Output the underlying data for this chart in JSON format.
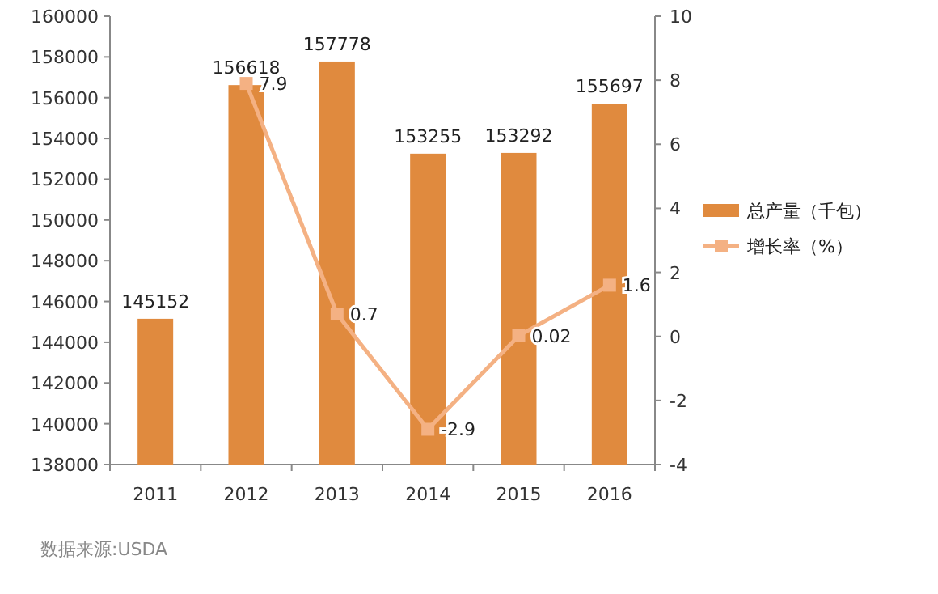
{
  "chart_data": {
    "type": "bar",
    "categories": [
      "2011",
      "2012",
      "2013",
      "2014",
      "2015",
      "2016"
    ],
    "series": [
      {
        "name": "总产量（千包）",
        "color": "#e08a3e",
        "values": [
          145152,
          156618,
          157778,
          153255,
          153292,
          155697
        ],
        "value_labels": [
          "145152",
          "156618",
          "157778",
          "153255",
          "153292",
          "155697"
        ]
      },
      {
        "name": "增长率（%）",
        "type": "line",
        "axis": "y2",
        "color": "#f4b183",
        "marker": "square",
        "values": [
          null,
          7.9,
          0.7,
          -2.9,
          0.02,
          1.6
        ],
        "value_labels": [
          null,
          "7.9",
          "0.7",
          "-2.9",
          "0.02",
          "1.6"
        ]
      }
    ],
    "ylim": [
      138000,
      160000
    ],
    "yticks": [
      138000,
      140000,
      142000,
      144000,
      146000,
      148000,
      150000,
      152000,
      154000,
      156000,
      158000,
      160000
    ],
    "y2lim": [
      -4,
      10
    ],
    "y2ticks": [
      -4,
      -2,
      0,
      2,
      4,
      6,
      8,
      10
    ],
    "legend": "right",
    "grid": false,
    "annotations": [
      "数据来源:USDA"
    ]
  }
}
